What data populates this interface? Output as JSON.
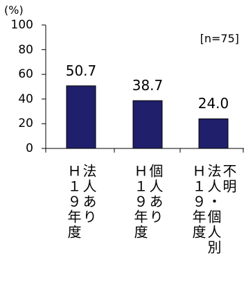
{
  "chart_data": {
    "type": "bar",
    "unit_label": "(%)",
    "annotation": "[n=75]",
    "categories": [
      "法人ありＨ１９年度",
      "個人ありＨ１９年度",
      "不明法人・個人別Ｈ１９年度"
    ],
    "category_lines": [
      [
        "法人あり",
        "Ｈ１９年度"
      ],
      [
        "個人あり",
        "Ｈ１９年度"
      ],
      [
        "不明",
        "法人・個人別",
        "Ｈ１９年度"
      ]
    ],
    "values": [
      50.7,
      38.7,
      24.0
    ],
    "value_labels": [
      "50.7",
      "38.7",
      "24.0"
    ],
    "ylim": [
      0,
      100
    ],
    "yticks": [
      0,
      20,
      40,
      60,
      80,
      100
    ],
    "ytick_labels": [
      "0",
      "20",
      "40",
      "60",
      "80",
      "100"
    ],
    "bar_color": "#1f1f6b",
    "grid": false,
    "legend": false
  }
}
